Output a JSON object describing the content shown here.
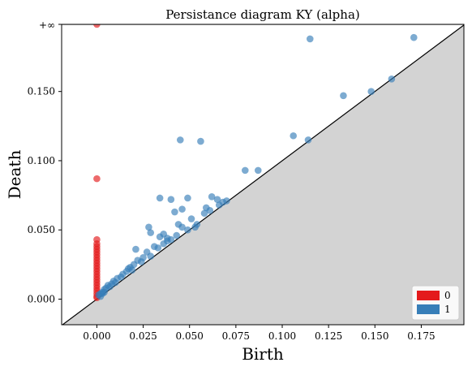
{
  "chart_data": {
    "type": "scatter",
    "title": "Persistance diagram KY (alpha)",
    "xlabel": "Birth",
    "ylabel": "Death",
    "xlim": [
      -0.019,
      0.198
    ],
    "ylim": [
      -0.0185,
      0.1985
    ],
    "infinity_level": 0.1985,
    "infinity_label": "+∞",
    "x_ticks": [
      0.0,
      0.025,
      0.05,
      0.075,
      0.1,
      0.125,
      0.15,
      0.175
    ],
    "x_tick_labels": [
      "0.000",
      "0.025",
      "0.050",
      "0.075",
      "0.100",
      "0.125",
      "0.150",
      "0.175"
    ],
    "y_ticks": [
      0.0,
      0.05,
      0.1,
      0.15
    ],
    "y_tick_labels": [
      "0.000",
      "0.050",
      "0.100",
      "0.150"
    ],
    "legend_position": "lower-right",
    "diagonal_fill_color": "#d3d3d3",
    "series": [
      {
        "name": "0",
        "color": "#e41a1c",
        "points": [
          [
            0.0,
            "inf"
          ],
          [
            0.0,
            0.087
          ],
          [
            0.0,
            0.043
          ],
          [
            0.0,
            0.04
          ],
          [
            0.0,
            0.038
          ],
          [
            0.0,
            0.036
          ],
          [
            0.0,
            0.034
          ],
          [
            0.0,
            0.032
          ],
          [
            0.0,
            0.03
          ],
          [
            0.0,
            0.028
          ],
          [
            0.0,
            0.026
          ],
          [
            0.0,
            0.024
          ],
          [
            0.0,
            0.022
          ],
          [
            0.0,
            0.02
          ],
          [
            0.0,
            0.018
          ],
          [
            0.0,
            0.016
          ],
          [
            0.0,
            0.014
          ],
          [
            0.0,
            0.012
          ],
          [
            0.0,
            0.01
          ],
          [
            0.0,
            0.008
          ],
          [
            0.0,
            0.006
          ],
          [
            0.0,
            0.004
          ],
          [
            0.0,
            0.002
          ],
          [
            0.0,
            0.001
          ]
        ]
      },
      {
        "name": "1",
        "color": "#377eb8",
        "points": [
          [
            0.115,
            0.188
          ],
          [
            0.171,
            0.189
          ],
          [
            0.159,
            0.159
          ],
          [
            0.148,
            0.15
          ],
          [
            0.133,
            0.147
          ],
          [
            0.106,
            0.118
          ],
          [
            0.114,
            0.115
          ],
          [
            0.045,
            0.115
          ],
          [
            0.056,
            0.114
          ],
          [
            0.08,
            0.093
          ],
          [
            0.087,
            0.093
          ],
          [
            0.034,
            0.073
          ],
          [
            0.04,
            0.072
          ],
          [
            0.049,
            0.073
          ],
          [
            0.062,
            0.074
          ],
          [
            0.065,
            0.072
          ],
          [
            0.068,
            0.07
          ],
          [
            0.07,
            0.071
          ],
          [
            0.066,
            0.068
          ],
          [
            0.059,
            0.066
          ],
          [
            0.061,
            0.064
          ],
          [
            0.058,
            0.062
          ],
          [
            0.046,
            0.065
          ],
          [
            0.042,
            0.063
          ],
          [
            0.051,
            0.058
          ],
          [
            0.044,
            0.054
          ],
          [
            0.046,
            0.052
          ],
          [
            0.049,
            0.05
          ],
          [
            0.053,
            0.052
          ],
          [
            0.054,
            0.054
          ],
          [
            0.028,
            0.052
          ],
          [
            0.029,
            0.048
          ],
          [
            0.036,
            0.047
          ],
          [
            0.034,
            0.045
          ],
          [
            0.038,
            0.044
          ],
          [
            0.04,
            0.043
          ],
          [
            0.043,
            0.046
          ],
          [
            0.031,
            0.038
          ],
          [
            0.036,
            0.04
          ],
          [
            0.038,
            0.042
          ],
          [
            0.033,
            0.037
          ],
          [
            0.021,
            0.036
          ],
          [
            0.027,
            0.034
          ],
          [
            0.025,
            0.03
          ],
          [
            0.029,
            0.031
          ],
          [
            0.022,
            0.028
          ],
          [
            0.024,
            0.027
          ],
          [
            0.02,
            0.025
          ],
          [
            0.018,
            0.023
          ],
          [
            0.019,
            0.021
          ],
          [
            0.016,
            0.02
          ],
          [
            0.017,
            0.022
          ],
          [
            0.014,
            0.018
          ],
          [
            0.013,
            0.016
          ],
          [
            0.011,
            0.015
          ],
          [
            0.009,
            0.013
          ],
          [
            0.01,
            0.012
          ],
          [
            0.008,
            0.011
          ],
          [
            0.006,
            0.01
          ],
          [
            0.005,
            0.008
          ],
          [
            0.007,
            0.009
          ],
          [
            0.004,
            0.007
          ],
          [
            0.003,
            0.005
          ],
          [
            0.002,
            0.004
          ],
          [
            0.001,
            0.003
          ],
          [
            0.004,
            0.005
          ],
          [
            0.002,
            0.002
          ],
          [
            0.003,
            0.004
          ]
        ]
      }
    ]
  }
}
